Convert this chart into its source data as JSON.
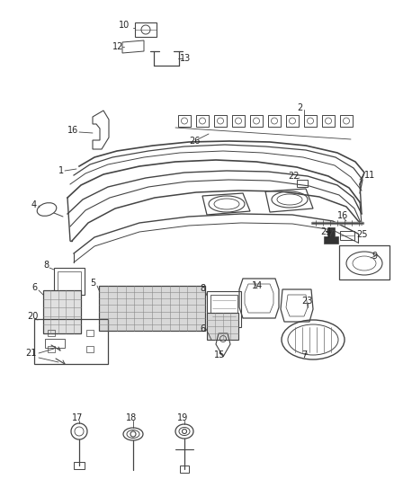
{
  "bg_color": "#ffffff",
  "fig_width": 4.38,
  "fig_height": 5.33,
  "dpi": 100,
  "line_color": "#444444",
  "text_color": "#222222",
  "part_font_size": 7.0
}
